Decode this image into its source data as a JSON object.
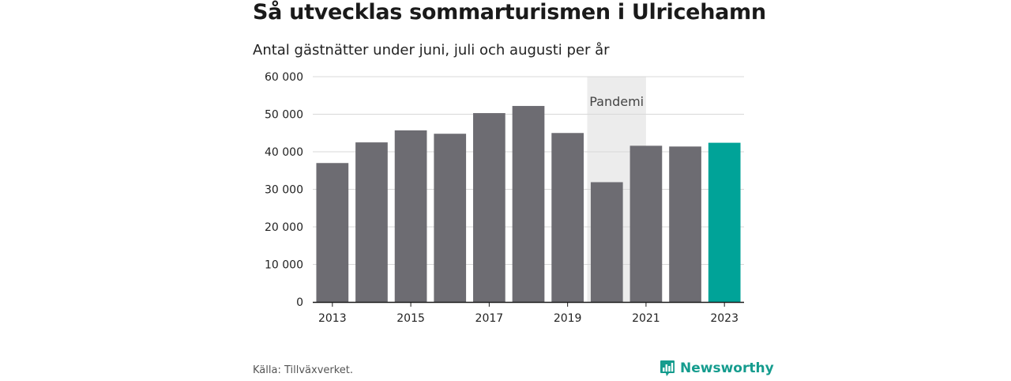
{
  "header": {
    "title": "Så utvecklas sommarturismen i Ulricehamn",
    "subtitle": "Antal gästnätter under juni, juli och augusti per år"
  },
  "footer": {
    "source": "Källa: Tillväxverket.",
    "brand": "Newsworthy"
  },
  "colors": {
    "bar": "#6d6c72",
    "highlight": "#00a398",
    "band": "#ececec",
    "grid": "#d8d8d8",
    "axis": "#1a1a1a",
    "brand": "#159c8e"
  },
  "chart_data": {
    "type": "bar",
    "categories": [
      "2013",
      "2014",
      "2015",
      "2016",
      "2017",
      "2018",
      "2019",
      "2020",
      "2021",
      "2022",
      "2023"
    ],
    "values": [
      37000,
      42500,
      45700,
      44800,
      50300,
      52200,
      45000,
      31900,
      41600,
      41400,
      42400
    ],
    "highlight_category": "2023",
    "xtick_labels": [
      "2013",
      "2015",
      "2017",
      "2019",
      "2021",
      "2023"
    ],
    "ylim": [
      0,
      60000
    ],
    "yticks": [
      0,
      10000,
      20000,
      30000,
      40000,
      50000,
      60000
    ],
    "ytick_labels": [
      "0",
      "10 000",
      "20 000",
      "30 000",
      "40 000",
      "50 000",
      "60 000"
    ],
    "grid": true,
    "annotation": {
      "text": "Pandemi",
      "from_category": "2020",
      "to_category": "2021"
    }
  }
}
